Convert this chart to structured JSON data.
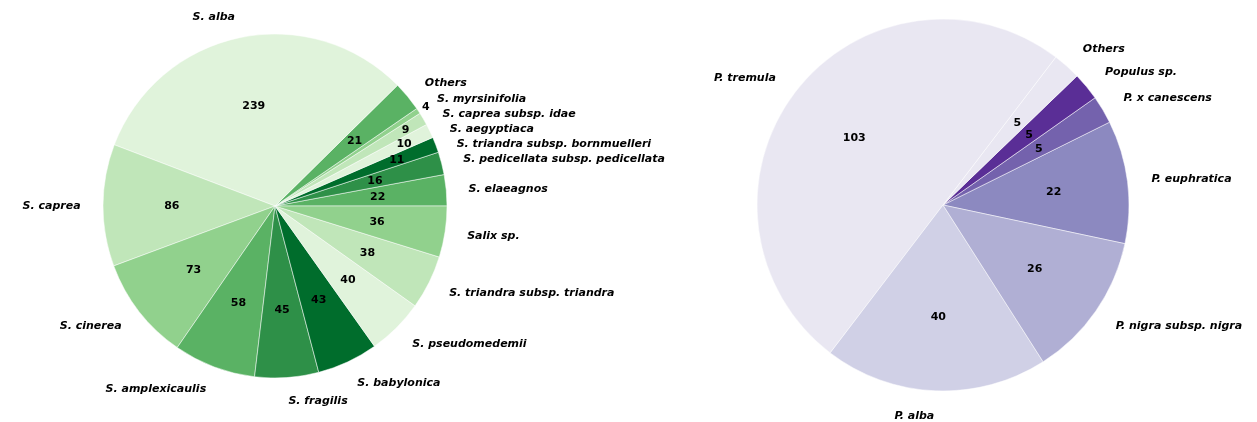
{
  "chart_data": [
    {
      "type": "pie",
      "categories": [
        "S. elaeagnos",
        "S. pedicellata subsp. pedicellata",
        "S. triandra subsp. bornmuelleri",
        "S. aegyptiaca",
        "S. caprea subsp. idae",
        "S. myrsinifolia",
        "Others",
        "S. alba",
        "S. caprea",
        "S. cinerea",
        "S. amplexicaulis",
        "S. fragilis",
        "S. babylonica",
        "S. pseudomedemii",
        "S. triandra subsp. triandra",
        "Salix sp."
      ],
      "values": [
        22,
        16,
        11,
        10,
        9,
        4,
        21,
        239,
        86,
        73,
        58,
        45,
        43,
        40,
        38,
        36
      ],
      "colors": [
        "#5ab264",
        "#2e9048",
        "#006d2c",
        "#e0f3db",
        "#c0e6b9",
        "#91d18d",
        "#5ab264",
        "#e0f3db",
        "#c0e6b9",
        "#91d18d",
        "#5ab264",
        "#2e9048",
        "#006d2c",
        "#e0f3db",
        "#c0e6b9",
        "#91d18d"
      ],
      "data_labels": true
    },
    {
      "type": "pie",
      "categories": [
        "P. euphratica",
        "P. x canescens",
        "Populus sp.",
        "Others",
        "P. tremula",
        "P. alba",
        "P. nigra subsp. nigra"
      ],
      "values": [
        22,
        5,
        5,
        5,
        103,
        40,
        26
      ],
      "colors": [
        "#8c89c0",
        "#7462ad",
        "#5a2e96",
        "#e9e7f2",
        "#e9e7f2",
        "#d0d0e6",
        "#b0afd4"
      ],
      "data_labels": true
    }
  ]
}
